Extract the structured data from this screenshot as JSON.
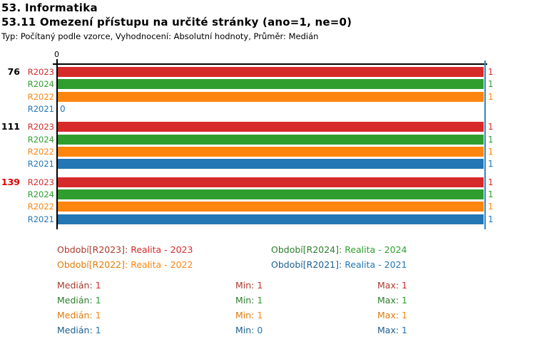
{
  "header": {
    "title": "53. Informatika",
    "subtitle": "53.11 Omezení přístupu na určité stránky (ano=1, ne=0)",
    "meta": "Typ: Počítaný podle vzorce, Vyhodnocení: Absolutní hodnoty, Průměr: Medián"
  },
  "chart_data": {
    "type": "bar",
    "orientation": "horizontal",
    "x_axis": {
      "min": 0,
      "max": 1,
      "ticks": [
        "0"
      ]
    },
    "median_reference_line": 1,
    "series": [
      {
        "id": "R2023",
        "name": "Realita - 2023",
        "color": "#d62b2a",
        "dark": "#a93a2b"
      },
      {
        "id": "R2024",
        "name": "Realita - 2024",
        "color": "#2f9e2f",
        "dark": "#2c7e2c"
      },
      {
        "id": "R2022",
        "name": "Realita - 2022",
        "color": "#ff860e",
        "dark": "#e07c08"
      },
      {
        "id": "R2021",
        "name": "Realita - 2021",
        "color": "#2277b4",
        "dark": "#1c5f8f"
      }
    ],
    "groups": [
      {
        "label": "76",
        "label_color": "#000000",
        "values": [
          1,
          1,
          1,
          0
        ]
      },
      {
        "label": "111",
        "label_color": "#000000",
        "values": [
          1,
          1,
          1,
          1
        ]
      },
      {
        "label": "139",
        "label_color": "#e00000",
        "values": [
          1,
          1,
          1,
          1
        ]
      }
    ]
  },
  "legend": {
    "items": [
      {
        "series": "R2023",
        "label": "Období[R2023]:",
        "value": "Realita - 2023"
      },
      {
        "series": "R2024",
        "label": "Období[R2024]:",
        "value": "Realita - 2024"
      },
      {
        "series": "R2022",
        "label": "Období[R2022]:",
        "value": "Realita - 2022"
      },
      {
        "series": "R2021",
        "label": "Období[R2021]:",
        "value": "Realita - 2021"
      }
    ]
  },
  "stats": {
    "rows": [
      {
        "series": "R2023",
        "median_label": "Medián:",
        "median": "1",
        "min_label": "Min:",
        "min": "1",
        "max_label": "Max:",
        "max": "1"
      },
      {
        "series": "R2024",
        "median_label": "Medián:",
        "median": "1",
        "min_label": "Min:",
        "min": "1",
        "max_label": "Max:",
        "max": "1"
      },
      {
        "series": "R2022",
        "median_label": "Medián:",
        "median": "1",
        "min_label": "Min:",
        "min": "1",
        "max_label": "Max:",
        "max": "1"
      },
      {
        "series": "R2021",
        "median_label": "Medián:",
        "median": "1",
        "min_label": "Min:",
        "min": "0",
        "max_label": "Max:",
        "max": "1"
      }
    ]
  }
}
